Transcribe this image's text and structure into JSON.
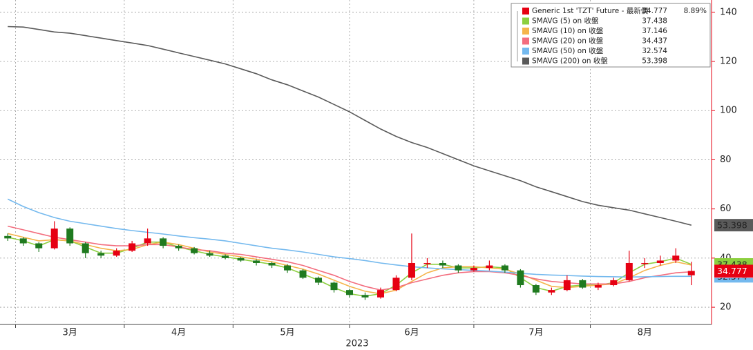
{
  "chart_data": {
    "type": "candlestick",
    "name": "Generic 1st 'TZT' Future - 最新價",
    "change_label": "8.89%",
    "xlabel": "2023",
    "categories": [
      null,
      null,
      null,
      null,
      "3月",
      null,
      null,
      null,
      null,
      null,
      null,
      "4月",
      null,
      null,
      null,
      null,
      null,
      null,
      "5月",
      null,
      null,
      null,
      null,
      null,
      null,
      null,
      "6月",
      null,
      null,
      null,
      null,
      null,
      null,
      null,
      "7月",
      null,
      null,
      null,
      null,
      null,
      null,
      "8月",
      null,
      null,
      null
    ],
    "candles": [
      [
        49,
        50,
        47,
        48
      ],
      [
        48,
        48.5,
        45,
        46
      ],
      [
        46,
        46.5,
        42.5,
        44
      ],
      [
        44,
        55,
        43.5,
        52
      ],
      [
        52,
        52.5,
        45,
        46
      ],
      [
        46,
        46.5,
        40,
        42
      ],
      [
        42,
        43,
        40,
        41
      ],
      [
        41,
        44,
        40.5,
        43
      ],
      [
        43,
        47,
        42.5,
        46
      ],
      [
        46,
        52,
        45,
        48
      ],
      [
        48,
        48.5,
        44,
        45
      ],
      [
        45,
        45.5,
        43,
        44
      ],
      [
        44,
        44.5,
        41.5,
        42
      ],
      [
        42,
        43,
        40.5,
        41
      ],
      [
        41,
        41.5,
        39.5,
        40
      ],
      [
        40,
        40.5,
        38.5,
        39
      ],
      [
        39,
        39.5,
        37,
        38
      ],
      [
        38,
        38.5,
        36,
        37
      ],
      [
        37,
        37.5,
        34,
        35
      ],
      [
        35,
        35.5,
        31.5,
        32
      ],
      [
        32,
        32.5,
        29,
        30
      ],
      [
        30,
        30.5,
        26,
        27
      ],
      [
        27,
        27.5,
        24,
        25
      ],
      [
        25,
        26,
        23,
        24
      ],
      [
        24,
        28,
        23.5,
        27
      ],
      [
        27,
        33,
        26.5,
        32
      ],
      [
        32,
        50,
        31,
        38
      ],
      [
        38,
        40,
        36,
        38
      ],
      [
        38,
        39,
        36,
        37
      ],
      [
        37,
        37.5,
        34,
        35
      ],
      [
        35,
        37,
        34.5,
        36
      ],
      [
        36,
        39,
        35,
        37
      ],
      [
        37,
        37.5,
        34,
        35
      ],
      [
        35,
        35.5,
        28,
        29
      ],
      [
        29,
        29.5,
        25,
        26
      ],
      [
        26,
        28,
        25,
        27
      ],
      [
        27,
        33,
        26.5,
        31
      ],
      [
        31,
        31.5,
        27.5,
        28
      ],
      [
        28,
        30,
        27,
        29
      ],
      [
        29,
        32,
        28.5,
        31
      ],
      [
        31,
        43,
        30.5,
        38
      ],
      [
        38,
        40,
        36,
        38
      ],
      [
        38,
        41,
        37,
        39
      ],
      [
        39,
        44,
        38,
        41
      ],
      [
        33,
        38.5,
        29,
        34.777
      ]
    ],
    "up_color": "#e60012",
    "down_color": "#1f7a1f",
    "series": [
      {
        "name": "SMAVG (5)  on 收盤",
        "color": "#8ccf3f",
        "values": [
          48.5,
          47,
          45,
          47.5,
          47,
          44.5,
          42,
          42,
          44,
          46.5,
          46.5,
          44.5,
          43,
          41.5,
          40.5,
          39.5,
          38.5,
          37.5,
          36,
          33.5,
          31,
          28,
          25.5,
          24.5,
          25.5,
          29,
          34,
          37.5,
          37.5,
          36,
          36,
          36.5,
          36,
          32,
          28,
          26.5,
          28.5,
          29,
          29,
          30,
          34,
          37.5,
          38.5,
          40,
          37.438
        ]
      },
      {
        "name": "SMAVG (10)  on 收盤",
        "color": "#f5b44a",
        "values": [
          50,
          48.5,
          47,
          47.5,
          47,
          45.5,
          44,
          43,
          43.5,
          45.5,
          46.5,
          45.5,
          44,
          42.5,
          41.5,
          40.5,
          39.5,
          38.5,
          37,
          35.5,
          33.5,
          31,
          28.5,
          26.5,
          25.5,
          27,
          30.5,
          34,
          36,
          36.5,
          36.5,
          36,
          35.5,
          33.5,
          31,
          28.5,
          28,
          28.5,
          29,
          29.5,
          32,
          35,
          37,
          38.5,
          37.146
        ]
      },
      {
        "name": "SMAVG (20)  on 收盤",
        "color": "#f36d7e",
        "values": [
          53,
          51.5,
          50,
          48.5,
          47.5,
          46.5,
          45.5,
          45,
          45,
          45.5,
          45.5,
          44.5,
          43.5,
          43,
          42,
          41.5,
          40.5,
          39.5,
          38.5,
          37,
          35,
          33,
          30.5,
          28.5,
          27,
          28,
          30,
          31.5,
          33,
          34,
          34.5,
          34.5,
          34,
          33,
          31.5,
          30.5,
          30,
          29.5,
          29.5,
          29.5,
          30.5,
          32,
          33,
          34,
          34.437
        ]
      },
      {
        "name": "SMAVG (50)  on 收盤",
        "color": "#74b9ee",
        "values": [
          64,
          61,
          58.5,
          56.5,
          55,
          54,
          53,
          52,
          51.2,
          50.5,
          49.8,
          49,
          48.3,
          47.7,
          47,
          46,
          45,
          44,
          43.3,
          42.5,
          41.5,
          40.5,
          39.8,
          39,
          38,
          37.2,
          36.5,
          36,
          35.6,
          35.3,
          35,
          34.7,
          34.3,
          33.8,
          33.4,
          33.1,
          32.9,
          32.7,
          32.5,
          32.4,
          32.3,
          32.4,
          32.5,
          32.6,
          32.574
        ]
      },
      {
        "name": "SMAVG (200)  on 收盤",
        "color": "#5a5a5a",
        "values": [
          134.2,
          134,
          133,
          132,
          131.5,
          130.5,
          129.5,
          128.5,
          127.5,
          126.5,
          125,
          123.5,
          122,
          120.5,
          119,
          117,
          115,
          112.5,
          110.5,
          108,
          105.5,
          102.5,
          99.5,
          96,
          92.5,
          89.5,
          87,
          85,
          82.5,
          80,
          77.5,
          75.5,
          73.5,
          71.5,
          69,
          67,
          65,
          63,
          61.5,
          60.5,
          59.5,
          58,
          56.5,
          55,
          53.398
        ]
      }
    ],
    "ylim": [
      13,
      145
    ],
    "yticks": [
      20,
      40,
      60,
      80,
      100,
      120,
      140
    ],
    "grid": true,
    "legend": "upper right"
  }
}
